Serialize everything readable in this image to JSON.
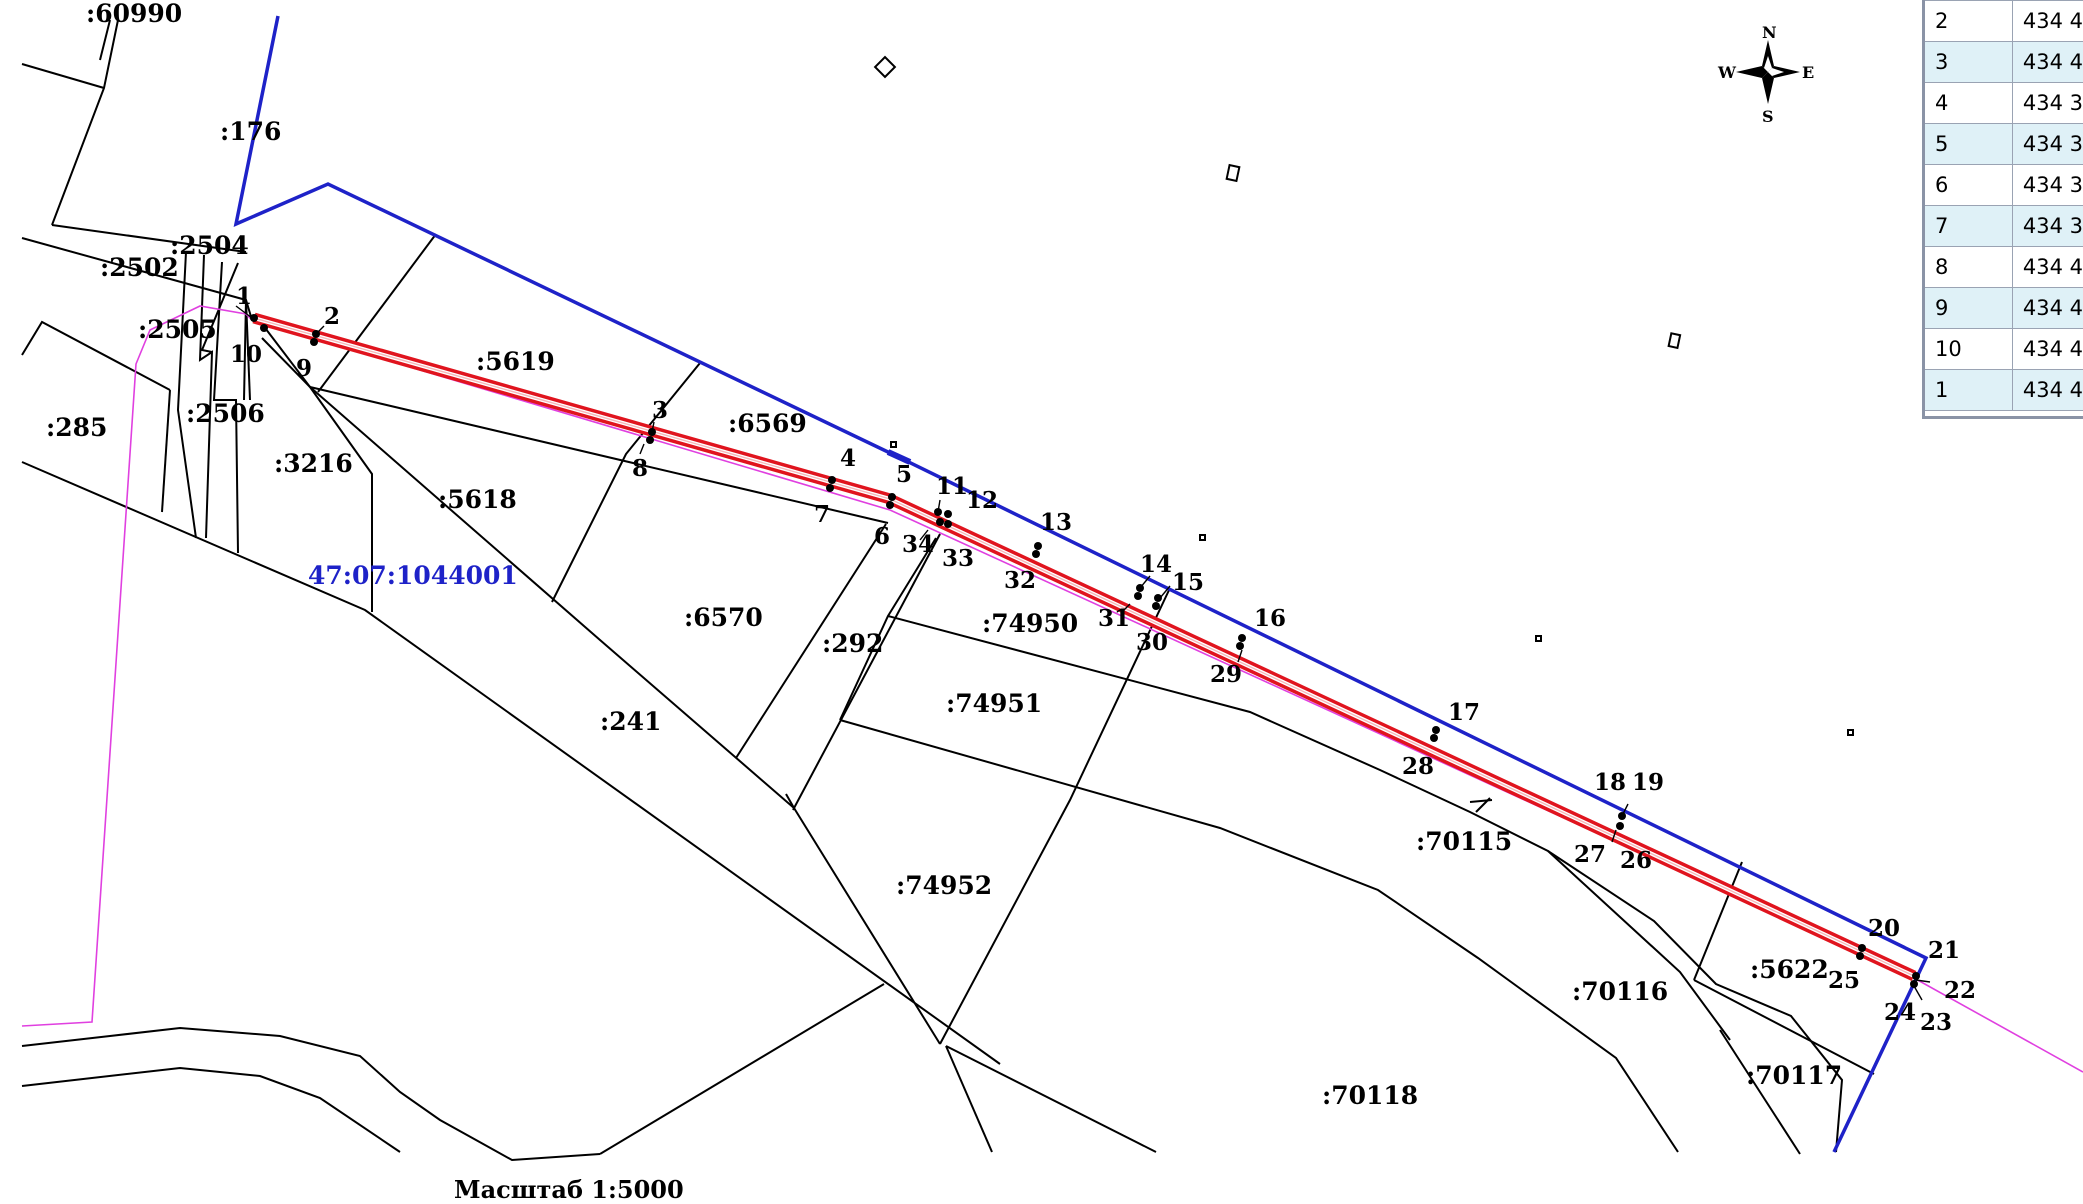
{
  "map": {
    "district_label": "47:07:1044001",
    "scale_label": "Масштаб 1:5000",
    "top_cut_label": ":60990",
    "colors": {
      "route_outline": "#e0141e",
      "district_boundary": "#1e22c8",
      "pink_line": "#e040e0",
      "parcel_line": "#000000"
    },
    "parcels": [
      {
        "id": "p176",
        "text": ":176"
      },
      {
        "id": "p2504",
        "text": ":2504"
      },
      {
        "id": "p2502",
        "text": ":2502"
      },
      {
        "id": "p2505",
        "text": ":2505"
      },
      {
        "id": "p285",
        "text": ":285"
      },
      {
        "id": "p2506",
        "text": ":2506"
      },
      {
        "id": "p3216",
        "text": ":3216"
      },
      {
        "id": "p5619",
        "text": ":5619"
      },
      {
        "id": "p6569",
        "text": ":6569"
      },
      {
        "id": "p5618",
        "text": ":5618"
      },
      {
        "id": "p6570",
        "text": ":6570"
      },
      {
        "id": "p292",
        "text": ":292"
      },
      {
        "id": "p74950",
        "text": ":74950"
      },
      {
        "id": "p74951",
        "text": ":74951"
      },
      {
        "id": "p241",
        "text": ":241"
      },
      {
        "id": "p74952",
        "text": ":74952"
      },
      {
        "id": "p70115",
        "text": ":70115"
      },
      {
        "id": "p70116",
        "text": ":70116"
      },
      {
        "id": "p5622",
        "text": ":5622"
      },
      {
        "id": "p70117",
        "text": ":70117"
      },
      {
        "id": "p70118",
        "text": ":70118"
      }
    ],
    "points": [
      "1",
      "2",
      "3",
      "4",
      "5",
      "6",
      "7",
      "8",
      "9",
      "10",
      "11",
      "12",
      "13",
      "14",
      "15",
      "16",
      "17",
      "18",
      "19",
      "20",
      "21",
      "22",
      "23",
      "24",
      "25",
      "26",
      "27",
      "28",
      "29",
      "30",
      "31",
      "32",
      "33",
      "34"
    ]
  },
  "compass": {
    "n": "N",
    "s": "S",
    "e": "E",
    "w": "W"
  },
  "coord_table": {
    "rows": [
      {
        "num": "2",
        "value": "434 4"
      },
      {
        "num": "3",
        "value": "434 4"
      },
      {
        "num": "4",
        "value": "434 3"
      },
      {
        "num": "5",
        "value": "434 3"
      },
      {
        "num": "6",
        "value": "434 3"
      },
      {
        "num": "7",
        "value": "434 3"
      },
      {
        "num": "8",
        "value": "434 4"
      },
      {
        "num": "9",
        "value": "434 4"
      },
      {
        "num": "10",
        "value": "434 4"
      },
      {
        "num": "1",
        "value": "434 4"
      }
    ]
  }
}
